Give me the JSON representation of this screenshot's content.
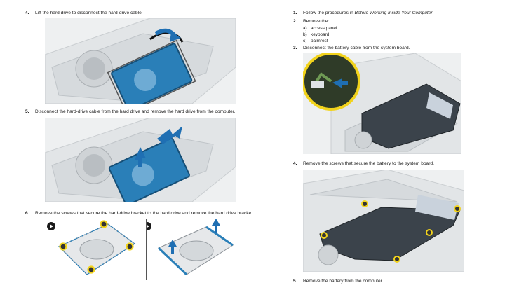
{
  "left": {
    "step4": {
      "num": "4.",
      "text": "Lift the hard drive to disconnect the hard-drive cable."
    },
    "step5": {
      "num": "5.",
      "text": "Disconnect the hard-drive cable from the hard drive and remove the hard drive from the computer."
    },
    "step6": {
      "num": "6.",
      "text": "Remove the screws that secure the hard-drive bracket to the hard drive and remove the hard drive bracke"
    }
  },
  "right": {
    "step1": {
      "num": "1.",
      "prefix": "Follow the procedures in ",
      "italic": "Before Working Inside Your Computer",
      "suffix": "."
    },
    "step2": {
      "num": "2.",
      "text": "Remove the:"
    },
    "subitems": [
      {
        "letter": "a)",
        "text": "access panel"
      },
      {
        "letter": "b)",
        "text": "keyboard"
      },
      {
        "letter": "c)",
        "text": "palmrest"
      }
    ],
    "step3": {
      "num": "3.",
      "text": "Disconnect the battery cable from the system board."
    },
    "step4": {
      "num": "4.",
      "text": "Remove the screws that secure the battery to the system board."
    },
    "step5": {
      "num": "5.",
      "text": "Remove the battery from the computer."
    }
  },
  "colors": {
    "drive_blue": "#2a7fb8",
    "arrow_blue": "#1f6fb3",
    "battery": "#3b434b",
    "screw_ring": "#f2d31c",
    "chassis": "#e4e6e8"
  }
}
